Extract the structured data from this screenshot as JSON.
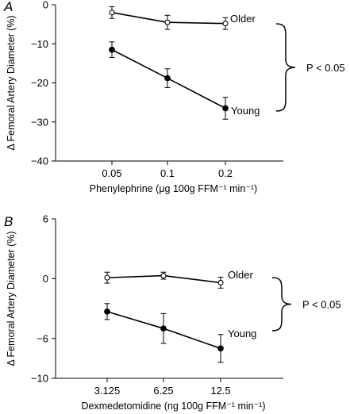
{
  "chart_data": [
    {
      "panel": "A",
      "type": "line",
      "xlabel": "Phenylephrine (μg 100g FFM⁻¹ min⁻¹)",
      "ylabel": "Δ Femoral Artery Diameter (%)",
      "categories": [
        "0.05",
        "0.1",
        "0.2"
      ],
      "yticks": [
        "0",
        "−10",
        "−20",
        "−30",
        "−40"
      ],
      "ylim": [
        -40,
        0
      ],
      "grid": false,
      "series": [
        {
          "name": "Older",
          "marker": "open-circle",
          "values": [
            -2.0,
            -4.5,
            -4.8
          ],
          "errors": [
            1.5,
            1.8,
            1.5
          ]
        },
        {
          "name": "Young",
          "marker": "filled-circle",
          "values": [
            -11.5,
            -18.8,
            -26.5
          ],
          "errors": [
            2.0,
            2.4,
            2.8
          ]
        }
      ],
      "annotation": "P < 0.05"
    },
    {
      "panel": "B",
      "type": "line",
      "xlabel": "Dexmedetomidine (ng 100g FFM⁻¹ min⁻¹)",
      "ylabel": "Δ Femoral Artery Diameter (%)",
      "categories": [
        "3.125",
        "6.25",
        "12.5"
      ],
      "yticks": [
        "6",
        "0",
        "−6",
        "−10"
      ],
      "ylim": [
        -10,
        6
      ],
      "grid": false,
      "series": [
        {
          "name": "Older",
          "marker": "open-circle",
          "values": [
            0.1,
            0.3,
            -0.4
          ],
          "errors": [
            0.55,
            0.35,
            0.55
          ]
        },
        {
          "name": "Young",
          "marker": "filled-circle",
          "values": [
            -3.3,
            -5.0,
            -7.0
          ],
          "errors": [
            0.8,
            1.5,
            1.4
          ]
        }
      ],
      "annotation": "P < 0.05"
    }
  ]
}
